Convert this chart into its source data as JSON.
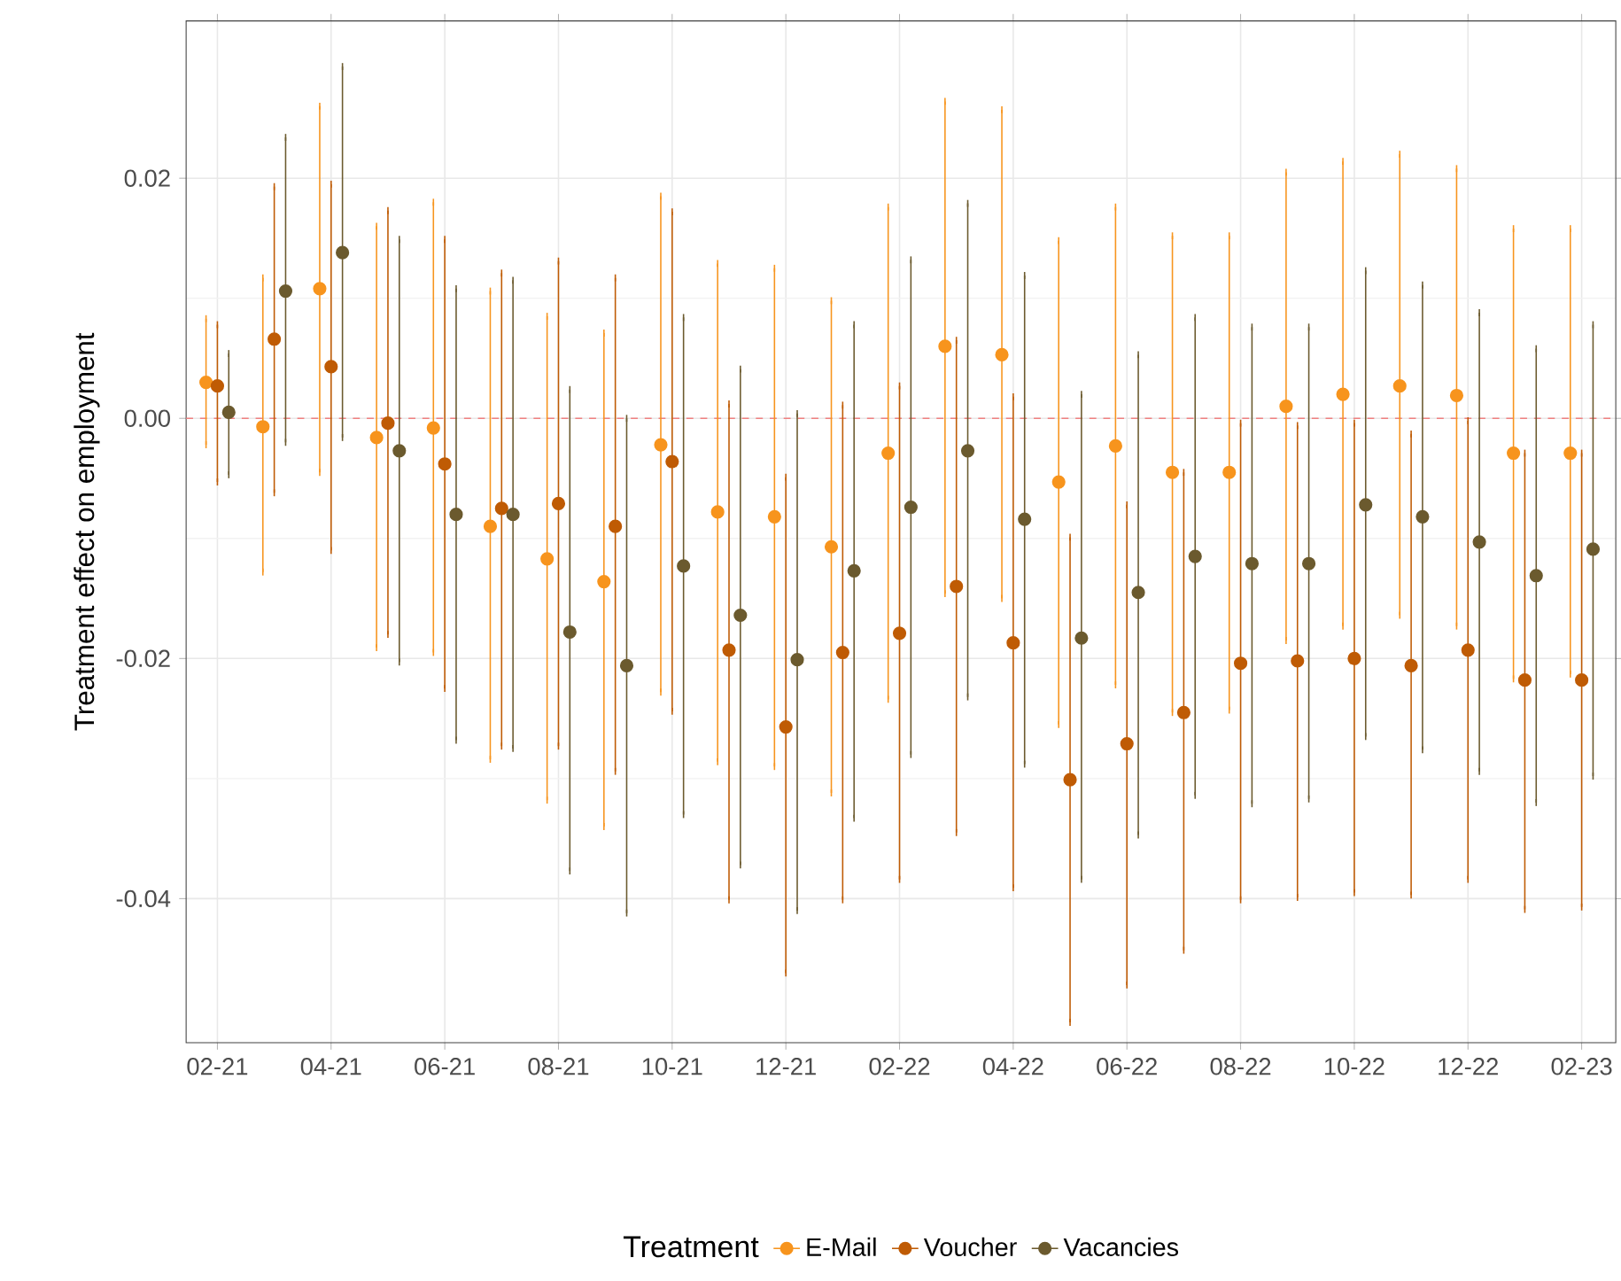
{
  "chart_data": {
    "type": "scatter",
    "ylabel": "Treatment effect on employment",
    "legend_title": "Treatment",
    "categories": [
      "02-21",
      null,
      "04-21",
      null,
      "06-21",
      null,
      "08-21",
      null,
      "10-21",
      null,
      "12-21",
      null,
      "02-22",
      null,
      "04-22",
      null,
      "06-22",
      null,
      "08-22",
      null,
      "10-22",
      null,
      "12-22",
      null,
      "02-23"
    ],
    "ylim": [
      -0.052,
      0.0331
    ],
    "yticks": [
      {
        "value": -0.04,
        "label": "-0.04"
      },
      {
        "value": -0.02,
        "label": "-0.02"
      },
      {
        "value": 0,
        "label": "0.00"
      },
      {
        "value": 0.02,
        "label": "0.02"
      }
    ],
    "grid": true,
    "legend": "bottom",
    "marker": "circle",
    "ref_lines": [
      {
        "axis": "y",
        "value": 0,
        "color": "#f08080",
        "line_style": "dashed"
      }
    ],
    "series": [
      {
        "name": "E-Mail",
        "color": "#f7941d",
        "values": [
          0.003,
          -0.0007,
          0.0108,
          -0.0016,
          -0.0008,
          -0.009,
          -0.0117,
          -0.0136,
          -0.0022,
          -0.0078,
          -0.0082,
          -0.0107,
          -0.0029,
          0.006,
          0.0053,
          -0.0053,
          -0.0023,
          -0.0045,
          -0.0045,
          0.001,
          0.002,
          0.0027,
          0.0019,
          -0.0029,
          -0.0029
        ],
        "errors": [
          [
            -0.0022,
            0.0083
          ],
          [
            -0.0128,
            0.0117
          ],
          [
            -0.0045,
            0.026
          ],
          [
            -0.0191,
            0.016
          ],
          [
            -0.0195,
            0.018
          ],
          [
            -0.0284,
            0.0106
          ],
          [
            -0.0318,
            0.0085
          ],
          [
            -0.034,
            0.0071
          ],
          [
            -0.0228,
            0.0185
          ],
          [
            -0.0286,
            0.0129
          ],
          [
            -0.029,
            0.0125
          ],
          [
            -0.0312,
            0.0098
          ],
          [
            -0.0234,
            0.0176
          ],
          [
            -0.0146,
            0.0264
          ],
          [
            -0.015,
            0.0257
          ],
          [
            -0.0255,
            0.0148
          ],
          [
            -0.0222,
            0.0176
          ],
          [
            -0.0245,
            0.0152
          ],
          [
            -0.0243,
            0.0152
          ],
          [
            -0.0185,
            0.0205
          ],
          [
            -0.0173,
            0.0214
          ],
          [
            -0.0164,
            0.022
          ],
          [
            -0.0173,
            0.0208
          ],
          [
            -0.0217,
            0.0158
          ],
          [
            -0.0213,
            0.0158
          ]
        ]
      },
      {
        "name": "Voucher",
        "color": "#bf5b04",
        "values": [
          0.0027,
          0.0066,
          0.0043,
          -0.0004,
          -0.0038,
          -0.0075,
          -0.0071,
          -0.009,
          -0.0036,
          -0.0193,
          -0.0257,
          -0.0195,
          -0.0179,
          -0.014,
          -0.0187,
          -0.0301,
          -0.0271,
          -0.0245,
          -0.0204,
          -0.0202,
          -0.02,
          -0.0206,
          -0.0193,
          -0.0218,
          -0.0218
        ],
        "errors": [
          [
            -0.0053,
            0.0078
          ],
          [
            -0.0062,
            0.0193
          ],
          [
            -0.011,
            0.0195
          ],
          [
            -0.018,
            0.0173
          ],
          [
            -0.0225,
            0.0149
          ],
          [
            -0.0273,
            0.0121
          ],
          [
            -0.0273,
            0.0131
          ],
          [
            -0.0294,
            0.0117
          ],
          [
            -0.0244,
            0.0172
          ],
          [
            -0.0401,
            0.0012
          ],
          [
            -0.0462,
            -0.0049
          ],
          [
            -0.0401,
            0.0011
          ],
          [
            -0.0384,
            0.0027
          ],
          [
            -0.0345,
            0.0065
          ],
          [
            -0.0391,
            0.0018
          ],
          [
            -0.0503,
            -0.0099
          ],
          [
            -0.0472,
            -0.0072
          ],
          [
            -0.0443,
            -0.0045
          ],
          [
            -0.0401,
            -0.0004
          ],
          [
            -0.0399,
            -0.0006
          ],
          [
            -0.0395,
            -0.0004
          ],
          [
            -0.0397,
            -0.0013
          ],
          [
            -0.0384,
            -0.0002
          ],
          [
            -0.0409,
            -0.0029
          ],
          [
            -0.0407,
            -0.0029
          ]
        ]
      },
      {
        "name": "Vacancies",
        "color": "#6b5a2e",
        "values": [
          0.0005,
          0.0106,
          0.0138,
          -0.0027,
          -0.008,
          -0.008,
          -0.0178,
          -0.0206,
          -0.0123,
          -0.0164,
          -0.0201,
          -0.0127,
          -0.0074,
          -0.0027,
          -0.0084,
          -0.0183,
          -0.0145,
          -0.0115,
          -0.0121,
          -0.0121,
          -0.0072,
          -0.0082,
          -0.0103,
          -0.0131,
          -0.0109
        ],
        "errors": [
          [
            -0.0047,
            0.0054
          ],
          [
            -0.002,
            0.0234
          ],
          [
            -0.0016,
            0.0293
          ],
          [
            -0.0203,
            0.0149
          ],
          [
            -0.0268,
            0.0108
          ],
          [
            -0.0275,
            0.0115
          ],
          [
            -0.0377,
            0.0024
          ],
          [
            -0.0412,
            0.0
          ],
          [
            -0.033,
            0.0084
          ],
          [
            -0.0372,
            0.0041
          ],
          [
            -0.041,
            0.0004
          ],
          [
            -0.0333,
            0.0078
          ],
          [
            -0.028,
            0.0132
          ],
          [
            -0.0232,
            0.0179
          ],
          [
            -0.0288,
            0.0119
          ],
          [
            -0.0384,
            0.002
          ],
          [
            -0.0347,
            0.0053
          ],
          [
            -0.0314,
            0.0084
          ],
          [
            -0.0321,
            0.0076
          ],
          [
            -0.0317,
            0.0076
          ],
          [
            -0.0265,
            0.0123
          ],
          [
            -0.0276,
            0.0111
          ],
          [
            -0.0294,
            0.0088
          ],
          [
            -0.032,
            0.0058
          ],
          [
            -0.0298,
            0.0078
          ]
        ]
      }
    ]
  }
}
